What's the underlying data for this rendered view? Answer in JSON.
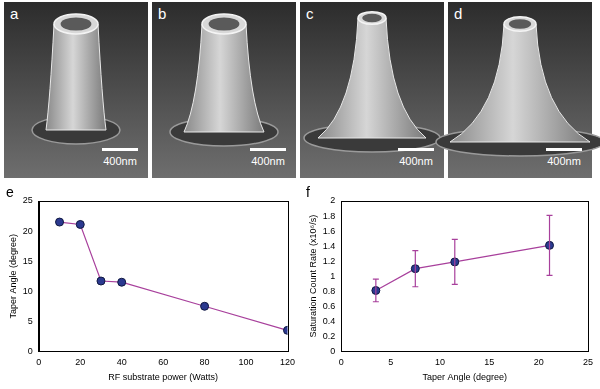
{
  "images": [
    {
      "label": "a",
      "scale_bar": "400nm"
    },
    {
      "label": "b",
      "scale_bar": "400nm"
    },
    {
      "label": "c",
      "scale_bar": "400nm"
    },
    {
      "label": "d",
      "scale_bar": "400nm"
    }
  ],
  "chart_data": [
    {
      "panel": "e",
      "type": "line",
      "x_label": "RF substrate power (Watts)",
      "y_label": "Taper Angle (degree)",
      "x": [
        10,
        20,
        30,
        40,
        80,
        120
      ],
      "series": [
        {
          "color": "#a8409c",
          "marker": "circle",
          "values": [
            21.5,
            21.1,
            11.7,
            11.5,
            7.5,
            3.5
          ]
        }
      ],
      "xlim": [
        0,
        120
      ],
      "xticks": [
        0,
        20,
        40,
        60,
        80,
        100,
        120
      ],
      "ylim": [
        0,
        25
      ],
      "yticks": [
        0,
        5,
        10,
        15,
        20,
        25
      ],
      "grid": false
    },
    {
      "panel": "f",
      "type": "line",
      "x_label": "Taper Angle (degree)",
      "y_label": "Saturation Count Rate (x10⁶/s)",
      "x": [
        3.5,
        7.5,
        11.5,
        21.1
      ],
      "series": [
        {
          "color": "#a8409c",
          "marker": "circle",
          "values": [
            0.81,
            1.1,
            1.19,
            1.41
          ],
          "errors": [
            0.15,
            0.24,
            0.3,
            0.4
          ]
        }
      ],
      "xlim": [
        0,
        25
      ],
      "xticks": [
        0,
        5,
        10,
        15,
        20,
        25
      ],
      "ylim": [
        0,
        2
      ],
      "yticks": [
        0,
        0.2,
        0.4,
        0.6,
        0.8,
        1,
        1.2,
        1.4,
        1.6,
        1.8,
        2
      ],
      "grid": false
    }
  ]
}
